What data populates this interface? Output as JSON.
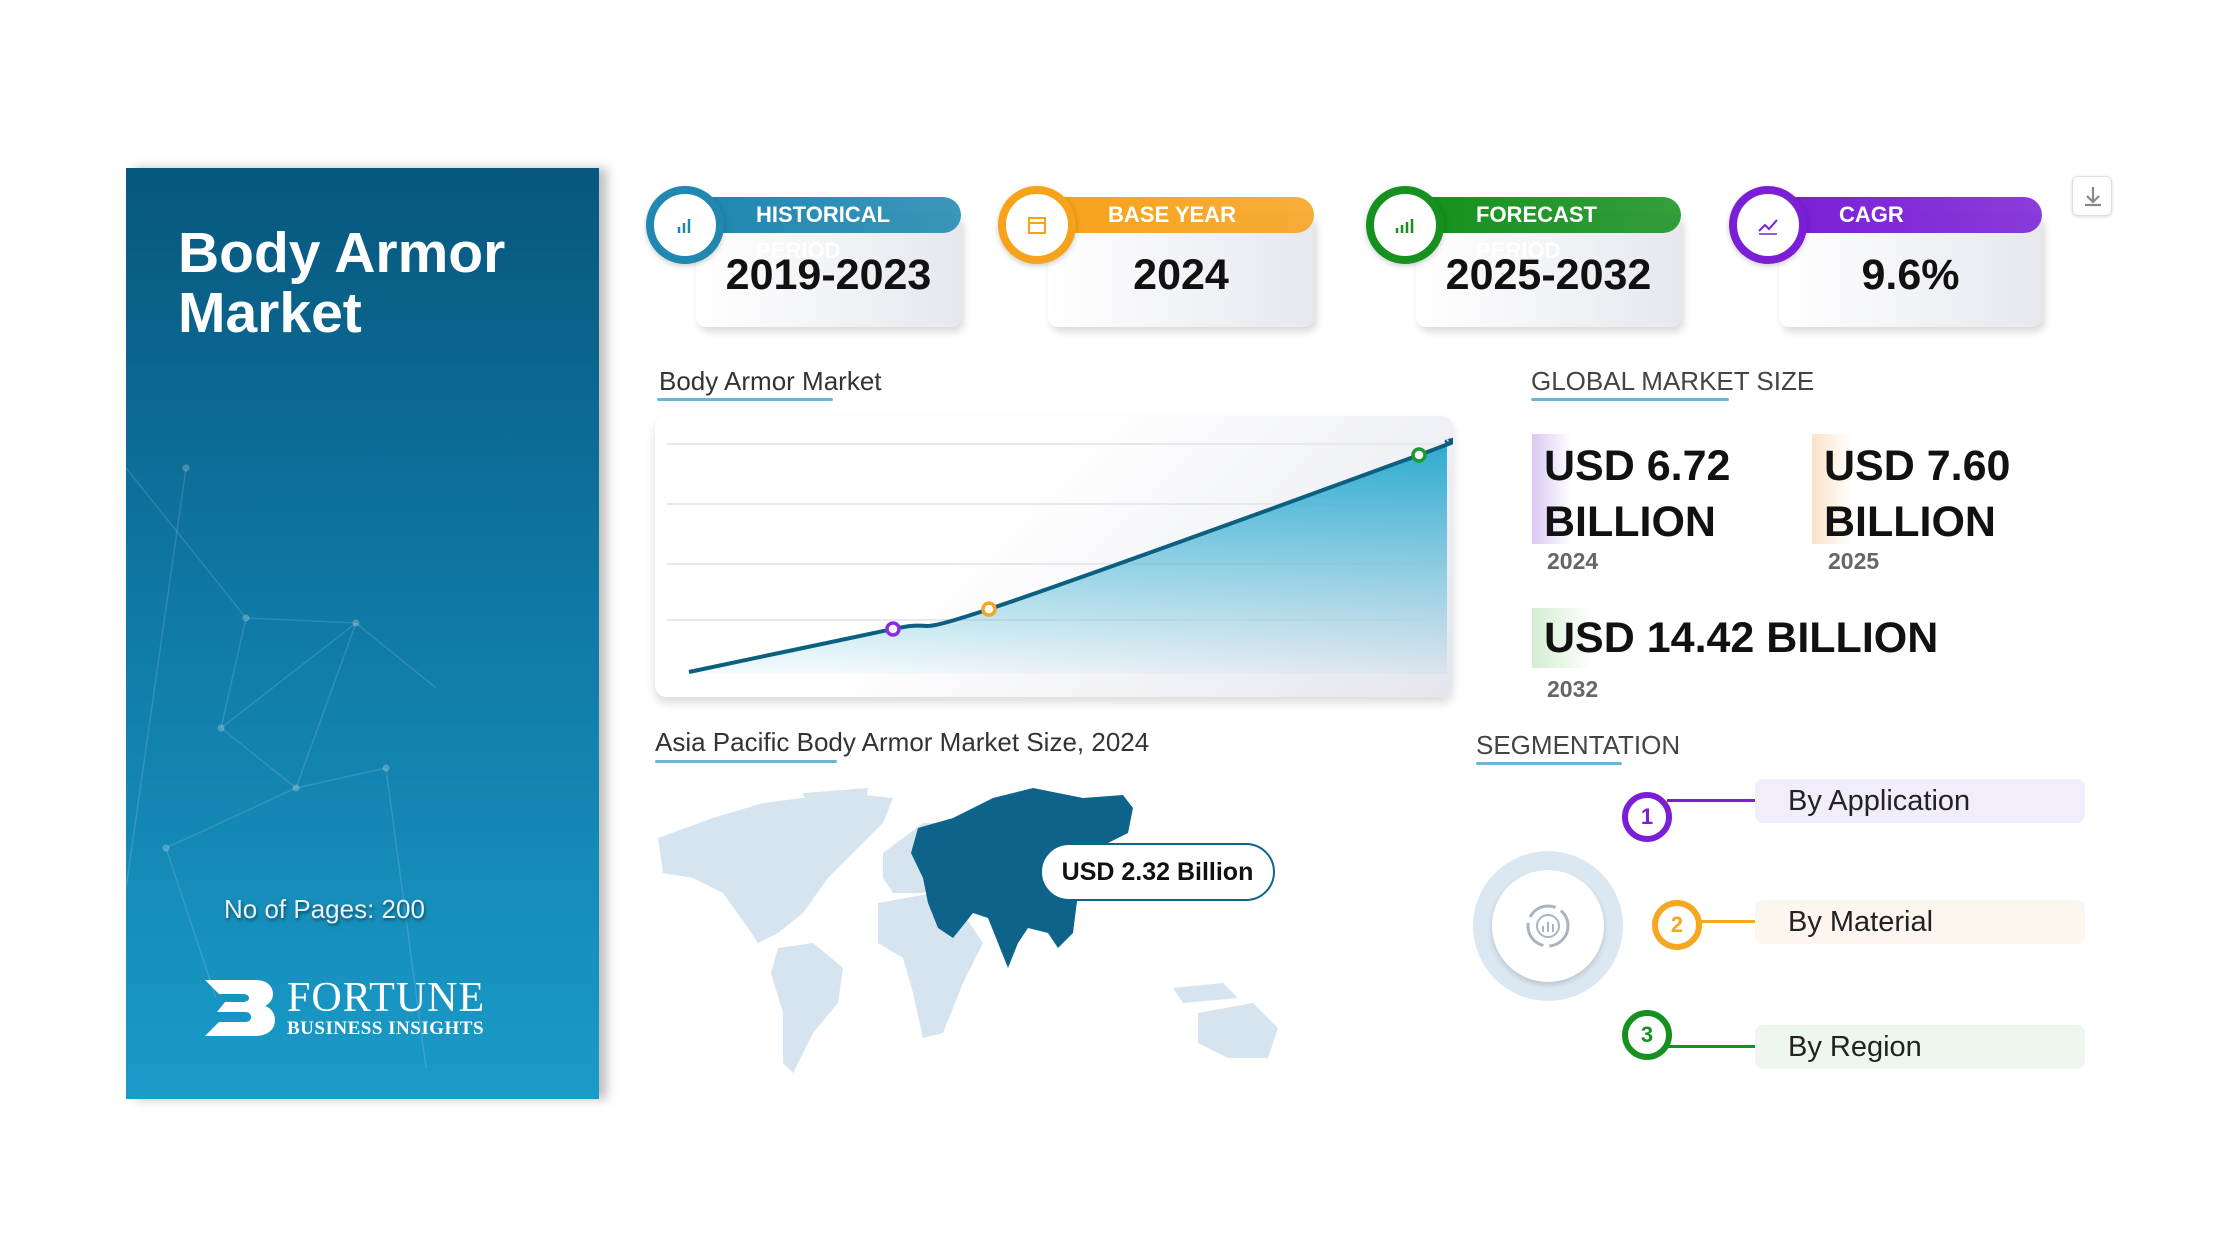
{
  "panel": {
    "title": "Body Armor Market",
    "pages": "No of Pages: 200",
    "logo_name": "FORTUNE",
    "logo_sub": "BUSINESS INSIGHTS"
  },
  "cards": [
    {
      "label": "HISTORICAL PERIOD",
      "value": "2019-2023",
      "color": "#1f87b0",
      "icon": "bar-chart-icon"
    },
    {
      "label": "BASE YEAR",
      "value": "2024",
      "color": "#f7a21b",
      "icon": "calendar-icon"
    },
    {
      "label": "FORECAST PERIOD",
      "value": "2025-2032",
      "color": "#16901f",
      "icon": "forecast-chart-icon"
    },
    {
      "label": "CAGR",
      "value": "9.6%",
      "color": "#7a1fd6",
      "icon": "growth-chart-icon"
    }
  ],
  "download": {
    "icon": "download-icon"
  },
  "chart_section": {
    "title": "Body Armor Market"
  },
  "chart_data": {
    "type": "area",
    "points": [
      {
        "year": 2024,
        "value": 6.72,
        "color": "#8b2be2"
      },
      {
        "year": 2025,
        "value": 7.6,
        "color": "#f5a623"
      },
      {
        "year": 2032,
        "value": 14.42,
        "color": "#1e9a32"
      }
    ],
    "unit": "USD Billion",
    "grid": true,
    "fill_color": "#29a9cf",
    "line_color": "#0d5f80"
  },
  "global": {
    "title": "GLOBAL MARKET SIZE",
    "items": [
      {
        "value": "USD 6.72 BILLION",
        "line1": "USD 6.72",
        "line2": "BILLION",
        "year": "2024",
        "color": "#c9b6ee"
      },
      {
        "value": "USD 7.60 BILLION",
        "line1": "USD 7.60",
        "line2": "BILLION",
        "year": "2025",
        "color": "#fbe0c2"
      },
      {
        "value": "USD 14.42 BILLION",
        "year": "2032",
        "color": "#cdeccc"
      }
    ]
  },
  "map": {
    "title": "Asia Pacific Body Armor Market Size, 2024",
    "callout": "USD 2.32 Billion",
    "highlight_color": "#0d6389",
    "base_color": "#d6e4ef"
  },
  "segmentation": {
    "title": "SEGMENTATION",
    "items": [
      {
        "num": "1",
        "label": "By Application",
        "color": "#7a1fd6",
        "bg": "#f1edfa"
      },
      {
        "num": "2",
        "label": "By Material",
        "color": "#f5a623",
        "bg": "#fdf6ee"
      },
      {
        "num": "3",
        "label": "By Region",
        "color": "#16901f",
        "bg": "#eef7ee"
      }
    ]
  }
}
